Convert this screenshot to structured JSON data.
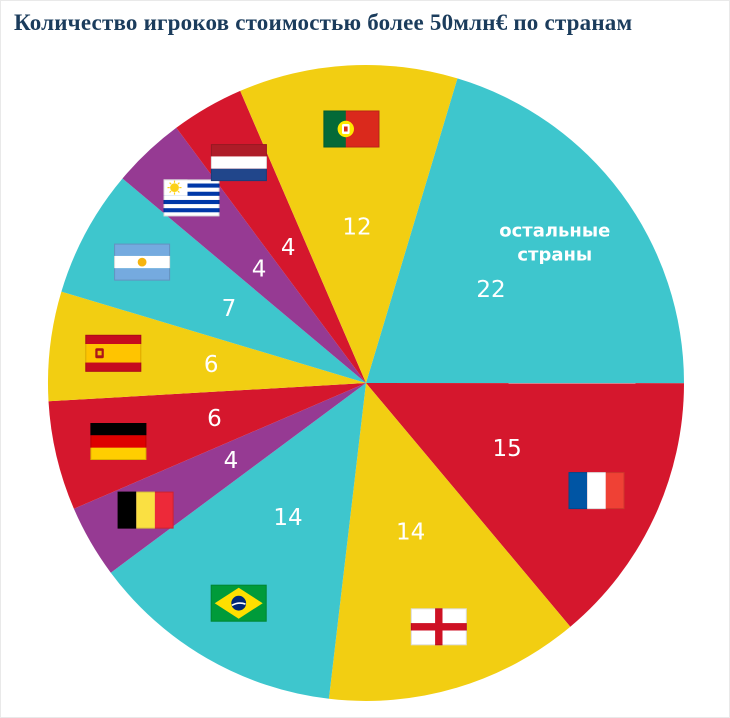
{
  "title": "Количество игроков стоимостью более 50млн€ по странам",
  "title_color": "#1b3c5c",
  "chart_data": {
    "type": "pie",
    "title": "Количество игроков стоимостью более 50млн€ по странам",
    "total": 108,
    "start_angle_deg": 16.7,
    "direction": "clockwise",
    "legend": "none",
    "value_labels_color": "#ffffff",
    "slices": [
      {
        "value": 22,
        "color": "#3ec6cd",
        "flag": null,
        "text_label": "остальные страны"
      },
      {
        "value": 15,
        "color": "#d5172d",
        "flag": "france",
        "text_label": null
      },
      {
        "value": 14,
        "color": "#f2ce12",
        "flag": "england",
        "text_label": null
      },
      {
        "value": 14,
        "color": "#3ec6cd",
        "flag": "brazil",
        "text_label": null
      },
      {
        "value": 4,
        "color": "#963a93",
        "flag": "belgium",
        "text_label": null
      },
      {
        "value": 6,
        "color": "#d5172d",
        "flag": "germany",
        "text_label": null
      },
      {
        "value": 6,
        "color": "#f2ce12",
        "flag": "spain",
        "text_label": null
      },
      {
        "value": 7,
        "color": "#3ec6cd",
        "flag": "argentina",
        "text_label": null
      },
      {
        "value": 4,
        "color": "#963a93",
        "flag": "uruguay",
        "text_label": null
      },
      {
        "value": 4,
        "color": "#d5172d",
        "flag": "netherlands",
        "text_label": null
      },
      {
        "value": 12,
        "color": "#f2ce12",
        "flag": "portugal",
        "text_label": null
      }
    ]
  }
}
